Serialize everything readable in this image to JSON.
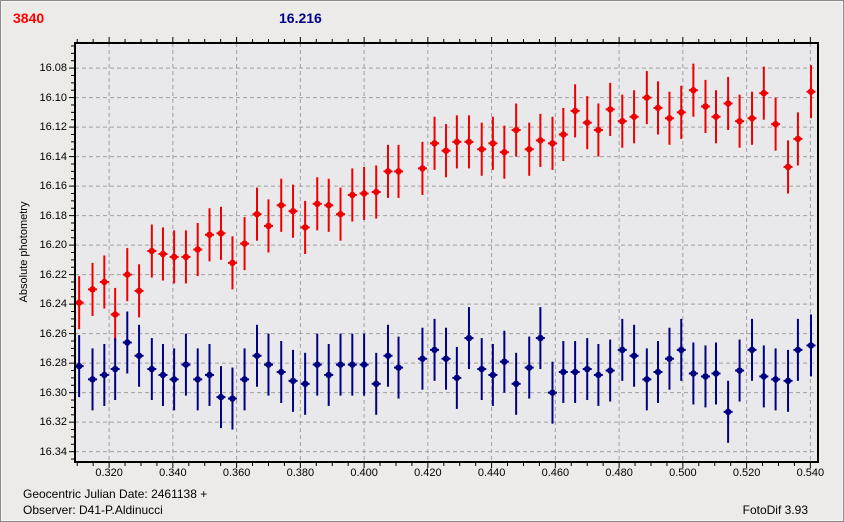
{
  "header": {
    "object_id": "3840",
    "object_color": "#ff0000",
    "comparison_value": "16.216",
    "comparison_color": "#00008b"
  },
  "footer": {
    "jd_text": "Geocentric Julian Date: 2461138 +",
    "observer_text": "Observer: D41-P.Aldinucci",
    "software_text": "FotoDif 3.93"
  },
  "colors": {
    "window_bg": "#ecebe8",
    "plot_bg": "#e9e9eb",
    "grid": "#a0a0a0",
    "plot_border": "#000000",
    "target_series": "#ee0000",
    "comparison_series": "#000082"
  },
  "chart_data": {
    "type": "scatter",
    "title": "",
    "xlabel": "",
    "ylabel": "Absolute photometry",
    "grid": true,
    "legend_position": "none",
    "y_inverted": true,
    "x_axis": {
      "min": 0.3093,
      "max": 0.5424,
      "major_tick_values": [
        0.32,
        0.34,
        0.36,
        0.38,
        0.4,
        0.42,
        0.44,
        0.46,
        0.48,
        0.5,
        0.52,
        0.54
      ],
      "tick_labels": [
        "0.320",
        "0.340",
        "0.360",
        "0.380",
        "0.400",
        "0.420",
        "0.440",
        "0.460",
        "0.480",
        "0.500",
        "0.520",
        "0.540"
      ],
      "minor_tick_step": 0.005
    },
    "y_axis": {
      "top_value": 16.063,
      "bottom_value": 16.347,
      "major_tick_values": [
        16.08,
        16.1,
        16.12,
        16.14,
        16.16,
        16.18,
        16.2,
        16.22,
        16.24,
        16.26,
        16.28,
        16.3,
        16.32,
        16.34
      ],
      "tick_labels": [
        "16.08",
        "16.10",
        "16.12",
        "16.14",
        "16.16",
        "16.18",
        "16.20",
        "16.22",
        "16.24",
        "16.26",
        "16.28",
        "16.30",
        "16.32",
        "16.34"
      ],
      "minor_tick_step": 0.005
    },
    "series": [
      {
        "name": "target-3840",
        "color": "#ee0000",
        "marker": "circle",
        "err": 0.018,
        "x": [
          0.3106,
          0.3148,
          0.3185,
          0.3219,
          0.3257,
          0.3294,
          0.3334,
          0.3369,
          0.3404,
          0.3441,
          0.3478,
          0.3515,
          0.3551,
          0.3587,
          0.3625,
          0.3664,
          0.37,
          0.374,
          0.3777,
          0.3815,
          0.3853,
          0.3889,
          0.3926,
          0.3963,
          0.4,
          0.4038,
          0.4075,
          0.4108,
          0.4183,
          0.4221,
          0.4257,
          0.4291,
          0.4329,
          0.4369,
          0.4404,
          0.444,
          0.4477,
          0.4518,
          0.4553,
          0.4591,
          0.4625,
          0.4662,
          0.47,
          0.4735,
          0.4772,
          0.481,
          0.4847,
          0.4887,
          0.4922,
          0.4958,
          0.4995,
          0.5033,
          0.5071,
          0.5104,
          0.5142,
          0.5178,
          0.5217,
          0.5254,
          0.5291,
          0.533,
          0.5361,
          0.5402
        ],
        "y": [
          16.239,
          16.23,
          16.225,
          16.247,
          16.22,
          16.231,
          16.204,
          16.206,
          16.208,
          16.208,
          16.203,
          16.193,
          16.192,
          16.212,
          16.199,
          16.179,
          16.187,
          16.173,
          16.177,
          16.188,
          16.172,
          16.173,
          16.179,
          16.166,
          16.165,
          16.164,
          16.15,
          16.15,
          16.148,
          16.131,
          16.136,
          16.13,
          16.13,
          16.135,
          16.131,
          16.137,
          16.122,
          16.135,
          16.129,
          16.131,
          16.125,
          16.109,
          16.117,
          16.122,
          16.108,
          16.116,
          16.113,
          16.1,
          16.107,
          16.114,
          16.11,
          16.095,
          16.106,
          16.113,
          16.104,
          16.116,
          16.114,
          16.097,
          16.118,
          16.147,
          16.128,
          16.096
        ]
      },
      {
        "name": "comparison-star",
        "color": "#000082",
        "marker": "circle",
        "err": 0.021,
        "x": [
          0.3106,
          0.3148,
          0.3185,
          0.3219,
          0.3257,
          0.3294,
          0.3334,
          0.3369,
          0.3404,
          0.3441,
          0.3478,
          0.3515,
          0.3551,
          0.3587,
          0.3625,
          0.3664,
          0.37,
          0.374,
          0.3777,
          0.3815,
          0.3853,
          0.3889,
          0.3926,
          0.3963,
          0.4,
          0.4038,
          0.4075,
          0.4108,
          0.4183,
          0.4221,
          0.4257,
          0.4291,
          0.4329,
          0.4369,
          0.4404,
          0.444,
          0.4477,
          0.4518,
          0.4553,
          0.4591,
          0.4625,
          0.4662,
          0.47,
          0.4735,
          0.4772,
          0.481,
          0.4847,
          0.4887,
          0.4922,
          0.4958,
          0.4995,
          0.5033,
          0.5071,
          0.5104,
          0.5142,
          0.5178,
          0.5217,
          0.5254,
          0.5291,
          0.533,
          0.5361,
          0.5402
        ],
        "y": [
          16.282,
          16.291,
          16.288,
          16.284,
          16.266,
          16.275,
          16.284,
          16.288,
          16.291,
          16.281,
          16.291,
          16.288,
          16.303,
          16.304,
          16.291,
          16.275,
          16.281,
          16.286,
          16.292,
          16.294,
          16.281,
          16.288,
          16.281,
          16.281,
          16.281,
          16.294,
          16.275,
          16.283,
          16.277,
          16.271,
          16.277,
          16.29,
          16.263,
          16.284,
          16.288,
          16.279,
          16.294,
          16.283,
          16.263,
          16.3,
          16.286,
          16.286,
          16.284,
          16.288,
          16.285,
          16.271,
          16.275,
          16.291,
          16.286,
          16.277,
          16.271,
          16.287,
          16.289,
          16.287,
          16.313,
          16.285,
          16.271,
          16.289,
          16.291,
          16.292,
          16.271,
          16.268
        ]
      }
    ]
  }
}
